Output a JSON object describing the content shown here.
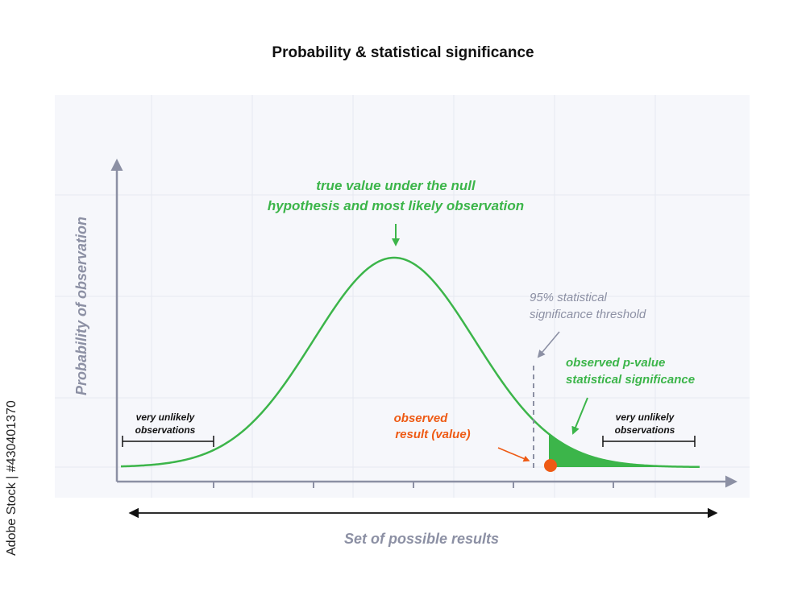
{
  "title": "Probability & statistical significance",
  "y_axis_label": "Probability of observation",
  "x_axis_label": "Set of possible results",
  "annotations": {
    "peak_line1": "true value under the null",
    "peak_line2": "hypothesis and most likely observation",
    "threshold_line1": "95% statistical",
    "threshold_line2": "significance threshold",
    "pvalue_line1": "observed p-value",
    "pvalue_line2": "statistical significance",
    "observed_line1": "observed",
    "observed_line2": "result (value)",
    "left_tail_line1": "very unlikely",
    "left_tail_line2": "observations",
    "right_tail_line1": "very unlikely",
    "right_tail_line2": "observations"
  },
  "stock_id": "Adobe Stock | #430401370",
  "colors": {
    "curve": "#3cb54a",
    "fill": "#3cb54a",
    "observed": "#ee5a14",
    "axis": "#8c90a4",
    "threshold_text": "#8c90a4",
    "grid_bg": "#f6f7fb",
    "grid_line": "#e6e8f0"
  }
}
